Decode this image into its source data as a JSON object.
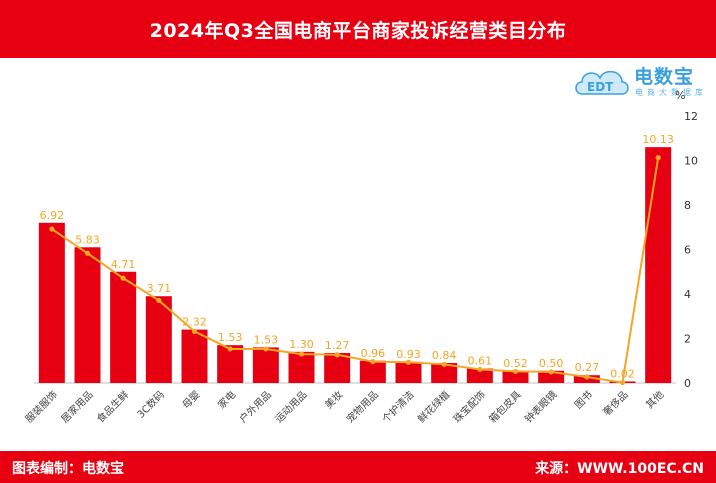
{
  "header": {
    "title": "2024年Q3全国电商平台商家投诉经营类目分布"
  },
  "footer": {
    "left": "图表编制：电数宝",
    "right": "来源：WWW.100EC.CN"
  },
  "logo": {
    "brand": "电数宝",
    "sub": "电商大数据库",
    "icon_text": "EDT"
  },
  "colors": {
    "bar": "#e60012",
    "line": "#f6a623",
    "label": "#f6a623",
    "header": "#e60012"
  },
  "chart_data": {
    "type": "bar",
    "title": "2024年Q3全国电商平台商家投诉经营类目分布",
    "ylabel": "%",
    "ylim": [
      0,
      12
    ],
    "yticks": [
      0,
      2,
      4,
      6,
      8,
      10,
      12
    ],
    "categories": [
      "服装服饰",
      "居家用品",
      "食品生鲜",
      "3C数码",
      "母婴",
      "家电",
      "户外用品",
      "运动用品",
      "美妆",
      "宠物用品",
      "个护清洁",
      "鲜花绿植",
      "珠宝配饰",
      "箱包皮具",
      "钟表眼镜",
      "图书",
      "奢侈品",
      "其他"
    ],
    "values": [
      6.92,
      5.83,
      4.71,
      3.71,
      2.32,
      1.53,
      1.53,
      1.3,
      1.27,
      0.96,
      0.93,
      0.84,
      0.61,
      0.52,
      0.5,
      0.27,
      0.02,
      10.13
    ],
    "labels": [
      "6.92",
      "5.83",
      "4.71",
      "3.71",
      "2.32",
      "1.53",
      "1.53",
      "1.30",
      "1.27",
      "0.96",
      "0.93",
      "0.84",
      "0.61",
      "0.52",
      "0.50",
      "0.27",
      "0.02",
      "10.13"
    ],
    "bar_values": [
      7.2,
      6.1,
      5.0,
      3.9,
      2.4,
      1.7,
      1.6,
      1.4,
      1.35,
      1.0,
      0.95,
      0.9,
      0.65,
      0.55,
      0.55,
      0.35,
      0.07,
      10.6
    ],
    "overlay_line": true,
    "grid": false,
    "legend": "none"
  }
}
